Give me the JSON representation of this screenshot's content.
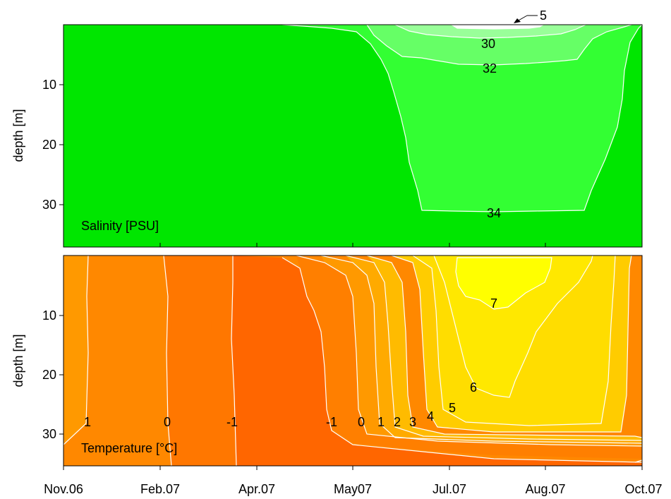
{
  "chart_data": [
    {
      "type": "contour",
      "panel": "salinity",
      "title": "Salinity [PSU]",
      "ylabel": "depth [m]",
      "ylim": [
        36,
        0
      ],
      "y_inverted": true,
      "yticks": [
        10,
        20,
        30
      ],
      "x_tick_labels": [
        "Nov.06",
        "Feb.07",
        "Apr.07",
        "May07",
        "Jul.07",
        "Aug.07",
        "Oct.07"
      ],
      "contour_levels": [
        5,
        30,
        32,
        34
      ],
      "contour_labels": [
        {
          "text": "5",
          "month": "Jul.07",
          "depth": 0
        },
        {
          "text": "30",
          "month": "Jul.07",
          "depth": 3
        },
        {
          "text": "32",
          "month": "Jul.07",
          "depth": 7
        },
        {
          "text": "34",
          "month": "Jul.07",
          "depth": 31
        }
      ],
      "colors": {
        "background": "#00e600",
        "band_32_34": "#33ff33",
        "band_30_32": "#66ff66",
        "band_lt_30": "#99ff99",
        "band_lt_5": "#ffffff"
      }
    },
    {
      "type": "contour",
      "panel": "temperature",
      "title": "Temperature [°C]",
      "ylabel": "depth [m]",
      "ylim": [
        36,
        0
      ],
      "y_inverted": true,
      "yticks": [
        10,
        20,
        30
      ],
      "x_tick_labels": [
        "Nov.06",
        "Feb.07",
        "Apr.07",
        "May07",
        "Jul.07",
        "Aug.07",
        "Oct.07"
      ],
      "contour_levels": [
        -1,
        0,
        1,
        2,
        3,
        4,
        5,
        6,
        7
      ],
      "contour_labels": [
        {
          "text": "1",
          "month": "Nov.06",
          "depth": 28
        },
        {
          "text": "0",
          "month": "Feb.07",
          "depth": 28
        },
        {
          "text": "-1",
          "month": "Apr.07",
          "depth": 28
        },
        {
          "text": "-1",
          "month": "May07",
          "depth": 28
        },
        {
          "text": "0",
          "month": "May07",
          "depth": 28
        },
        {
          "text": "1",
          "month": "May07",
          "depth": 28
        },
        {
          "text": "2",
          "month": "May07",
          "depth": 28
        },
        {
          "text": "3",
          "month": "Jul.07",
          "depth": 28
        },
        {
          "text": "4",
          "month": "Jul.07",
          "depth": 27
        },
        {
          "text": "5",
          "month": "Jul.07",
          "depth": 26
        },
        {
          "text": "6",
          "month": "Jul.07",
          "depth": 21
        },
        {
          "text": "7",
          "month": "Jul.07",
          "depth": 8
        }
      ],
      "colors": {
        "lt_neg1": "#ff6600",
        "neg1_0": "#ff7700",
        "t0_1": "#ff8800",
        "t1_2": "#ff9900",
        "t2_3": "#ffaa00",
        "t3_4": "#ffbb00",
        "t4_5": "#ffcc00",
        "t5_6": "#ffdd00",
        "t6_7": "#ffe800",
        "gt_7": "#ffff00"
      }
    }
  ]
}
